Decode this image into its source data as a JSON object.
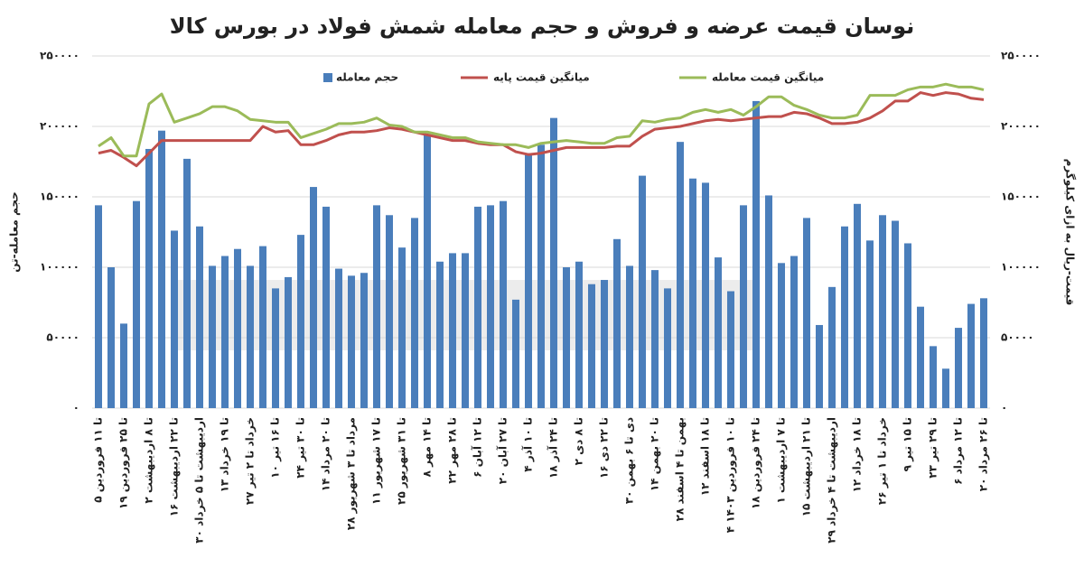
{
  "chart_data": {
    "type": "bar_line",
    "title": "نوسان قیمت عرضه و فروش و حجم معامله شمش فولاد در بورس کالا",
    "ylabel": "حجم معامله-تن",
    "y2label": "قیمت-ریال به ازای کیلوگرم",
    "categories": [
      "۵ تا ۱۱ فروردین",
      null,
      "۱۹ تا ۲۵ فروردین",
      null,
      "۲ تا ۸ اردیبهشت",
      null,
      "۱۶ تا ۲۲ اردیبهشت",
      null,
      "۳۰ اردیبهشت تا ۵ خرداد",
      null,
      "۱۳ تا ۱۹ خرداد",
      null,
      "۲۷ خرداد تا ۲ تیر",
      null,
      "۱۰ تا ۱۶ تیر",
      null,
      "۲۴ تا ۳۰ تیر",
      null,
      "۱۴ تا ۲۰ مرداد",
      null,
      "۲۸ مرداد تا ۳ شهریور",
      null,
      "۱۱ تا ۱۷ شهریور",
      null,
      "۲۵ تا ۳۱ شهریور",
      null,
      "۸ تا ۱۴ مهر",
      null,
      "۲۲ تا ۲۸ مهر",
      null,
      "۶ تا ۱۲ آبان",
      null,
      "۲۰ تا ۲۷ آبان",
      null,
      "۴ تا ۱۰ آذر",
      null,
      "۱۸ تا ۲۴ آذر",
      null,
      "۲ تا ۸ دی",
      null,
      "۱۶ تا ۲۲ دی",
      null,
      "۳۰ دی تا ۶ بهمن",
      null,
      "۱۴ تا ۲۰ بهمن",
      null,
      "۲۸ بهمن تا ۴ اسفند",
      null,
      "۱۲ تا ۱۸ اسفند",
      null,
      "۴ تا ۱۰ فروردین ۱۴۰۳",
      null,
      "۱۸ تا ۲۴ فروردین",
      null,
      "۱ تا ۷ اردیبهشت",
      null,
      "۱۵ تا ۲۱ اردیبهشت",
      null,
      "۲۹ اردیبهشت تا ۴ خرداد",
      null,
      "۱۲ تا ۱۸ خرداد",
      null,
      "۲۶ خرداد تا ۱ تیر",
      null,
      "۹ تا ۱۵ تیر",
      null,
      "۲۳ تا ۲۹ تیر",
      null,
      "۶ تا ۱۲ مرداد",
      null,
      "۲۰ تا ۲۶ مرداد"
    ],
    "series": [
      {
        "name": "حجم معامله",
        "color": "#4a7ebb",
        "kind": "bar",
        "axis": "y",
        "values": [
          144000,
          100000,
          60000,
          147000,
          184000,
          197000,
          126000,
          177000,
          129000,
          101000,
          108000,
          113000,
          101000,
          115000,
          85000,
          93000,
          123000,
          157000,
          143000,
          99000,
          94000,
          96000,
          144000,
          137000,
          114000,
          135000,
          194000,
          104000,
          110000,
          110000,
          143000,
          144000,
          147000,
          77000,
          181000,
          187000,
          206000,
          100000,
          104000,
          88000,
          91000,
          120000,
          101000,
          165000,
          98000,
          85000,
          189000,
          163000,
          160000,
          107000,
          83000,
          144000,
          218000,
          151000,
          103000,
          108000,
          135000,
          59000,
          86000,
          129000,
          145000,
          119000,
          137000,
          133000,
          117000,
          72000,
          44000,
          28000,
          57000,
          74000,
          78000
        ]
      },
      {
        "name": "میانگین قیمت پایه",
        "color": "#c0504d",
        "kind": "line",
        "axis": "y2",
        "values": [
          181000,
          183000,
          178000,
          172000,
          181000,
          190000,
          190000,
          190000,
          190000,
          190000,
          190000,
          190000,
          190000,
          200000,
          196000,
          197000,
          187000,
          187000,
          190000,
          194000,
          196000,
          196000,
          197000,
          199000,
          198000,
          196000,
          194000,
          192000,
          190000,
          190000,
          188000,
          187000,
          187000,
          182000,
          180000,
          181000,
          183000,
          185000,
          185000,
          185000,
          185000,
          186000,
          186000,
          193000,
          198000,
          199000,
          200000,
          202000,
          204000,
          205000,
          204000,
          205000,
          206000,
          207000,
          207000,
          210000,
          209000,
          206000,
          202000,
          202000,
          203000,
          206000,
          211000,
          218000,
          218000,
          224000,
          222000,
          224000,
          223000,
          220000,
          219000
        ]
      },
      {
        "name": "میانگین قیمت معامله",
        "color": "#9bbb59",
        "kind": "line",
        "axis": "y2",
        "values": [
          186000,
          192000,
          179000,
          179000,
          216000,
          223000,
          203000,
          206000,
          209000,
          214000,
          214000,
          211000,
          205000,
          204000,
          203000,
          203000,
          192000,
          195000,
          198000,
          202000,
          202000,
          203000,
          206000,
          201000,
          200000,
          196000,
          196000,
          194000,
          192000,
          192000,
          189000,
          188000,
          187000,
          187000,
          185000,
          188000,
          189000,
          190000,
          189000,
          188000,
          188000,
          192000,
          193000,
          204000,
          203000,
          205000,
          206000,
          210000,
          212000,
          210000,
          212000,
          208000,
          214000,
          221000,
          221000,
          215000,
          212000,
          208000,
          206000,
          206000,
          208000,
          222000,
          222000,
          222000,
          226000,
          228000,
          228000,
          230000,
          228000,
          228000,
          226000
        ]
      }
    ],
    "ylim": [
      0,
      250000
    ],
    "yticks": [
      {
        "value": 0,
        "label": "۰"
      },
      {
        "value": 50000,
        "label": "۵۰۰۰۰"
      },
      {
        "value": 100000,
        "label": "۱۰۰۰۰۰"
      },
      {
        "value": 150000,
        "label": "۱۵۰۰۰۰"
      },
      {
        "value": 200000,
        "label": "۲۰۰۰۰۰"
      },
      {
        "value": 250000,
        "label": "۲۵۰۰۰۰"
      }
    ],
    "y2lim": [
      0,
      250000
    ],
    "y2ticks": [
      {
        "value": 0,
        "label": "۰"
      },
      {
        "value": 50000,
        "label": "۵۰۰۰۰"
      },
      {
        "value": 100000,
        "label": "۱۰۰۰۰۰"
      },
      {
        "value": 150000,
        "label": "۱۵۰۰۰۰"
      },
      {
        "value": 200000,
        "label": "۲۰۰۰۰۰"
      },
      {
        "value": 250000,
        "label": "۲۵۰۰۰۰"
      }
    ],
    "grid": true
  }
}
